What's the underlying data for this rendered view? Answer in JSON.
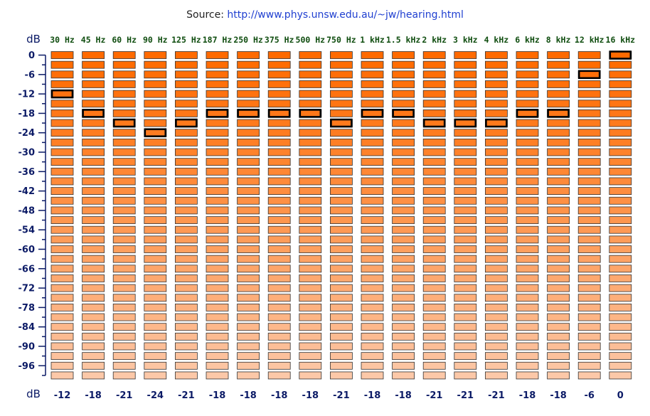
{
  "source": {
    "prefix": "Source: ",
    "url": "http://www.phys.unsw.edu.au/~jw/hearing.html"
  },
  "chart_data": {
    "type": "table",
    "description_free": true,
    "unit_top": "dB",
    "unit_bottom": "dB",
    "frequencies": [
      "30 Hz",
      "45 Hz",
      "60 Hz",
      "90 Hz",
      "125 Hz",
      "187 Hz",
      "250 Hz",
      "375 Hz",
      "500 Hz",
      "750 Hz",
      "1 kHz",
      "1.5 kHz",
      "2 kHz",
      "3 kHz",
      "4 kHz",
      "6 kHz",
      "8 kHz",
      "12 kHz",
      "16 kHz"
    ],
    "thresholds_db": [
      -12,
      -18,
      -21,
      -24,
      -21,
      -18,
      -18,
      -18,
      -18,
      -21,
      -18,
      -18,
      -21,
      -21,
      -21,
      -18,
      -18,
      -6,
      0
    ],
    "threshold_labels": [
      "-12",
      "-18",
      "-21",
      "-24",
      "-21",
      "-18",
      "-18",
      "-18",
      "-18",
      "-21",
      "-18",
      "-18",
      "-21",
      "-21",
      "-21",
      "-18",
      "-18",
      "-6",
      "0"
    ],
    "y_ticks": [
      "0",
      "-6",
      "-12",
      "-18",
      "-24",
      "-30",
      "-36",
      "-42",
      "-48",
      "-54",
      "-60",
      "-66",
      "-72",
      "-78",
      "-84",
      "-90",
      "-96"
    ],
    "levels_db": [
      0,
      -3,
      -6,
      -9,
      -12,
      -15,
      -18,
      -21,
      -24,
      -27,
      -30,
      -33,
      -36,
      -39,
      -42,
      -45,
      -48,
      -51,
      -54,
      -57,
      -60,
      -63,
      -66,
      -69,
      -72,
      -75,
      -78,
      -81,
      -84,
      -87,
      -90,
      -93,
      -96,
      -99
    ],
    "ylim": [
      -99,
      0
    ],
    "colors": {
      "block_strong": "#ff6a00",
      "block_faint": "#fcc8a8",
      "block_border": "#333333",
      "highlight_border": "#000000",
      "axis": "#0b1a66"
    }
  }
}
